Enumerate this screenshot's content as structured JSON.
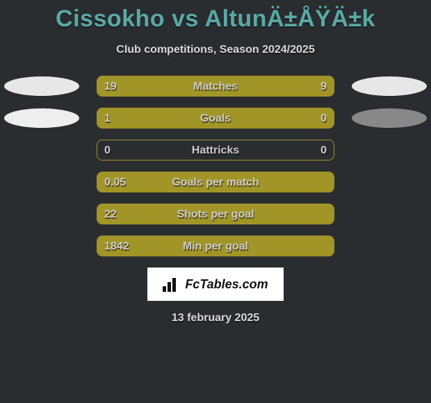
{
  "title": "Cissokho vs AltunÄ±ÅŸÄ±k",
  "subtitle": "Club competitions, Season 2024/2025",
  "footer_date": "13 february 2025",
  "logo_text": "FcTables.com",
  "colors": {
    "background": "#2a2d30",
    "title": "#59a9a5",
    "subtitle": "#d8d8d8",
    "bar_fill": "#a29527",
    "bar_border": "#a29527",
    "bar_text": "#c9c9c9",
    "oval_light": "#e7e7e7",
    "oval_left_goals": "#eeeeee",
    "oval_right_matches": "#e7e7e7",
    "oval_right_goals": "#888888"
  },
  "stats": [
    {
      "label": "Matches",
      "left_value": "19",
      "right_value": "9",
      "left_pct": 66,
      "right_pct": 34,
      "oval_left_color": "#e7e7e7",
      "oval_right_color": "#e7e7e7"
    },
    {
      "label": "Goals",
      "left_value": "1",
      "right_value": "0",
      "left_pct": 76,
      "right_pct": 24,
      "oval_left_color": "#eeeeee",
      "oval_right_color": "#888888"
    },
    {
      "label": "Hattricks",
      "left_value": "0",
      "right_value": "0",
      "left_pct": 0,
      "right_pct": 0,
      "oval_left_color": null,
      "oval_right_color": null
    },
    {
      "label": "Goals per match",
      "left_value": "0.05",
      "right_value": "",
      "left_pct": 100,
      "right_pct": 0,
      "oval_left_color": null,
      "oval_right_color": null
    },
    {
      "label": "Shots per goal",
      "left_value": "22",
      "right_value": "",
      "left_pct": 100,
      "right_pct": 0,
      "oval_left_color": null,
      "oval_right_color": null
    },
    {
      "label": "Min per goal",
      "left_value": "1842",
      "right_value": "",
      "left_pct": 100,
      "right_pct": 0,
      "oval_left_color": null,
      "oval_right_color": null
    }
  ]
}
